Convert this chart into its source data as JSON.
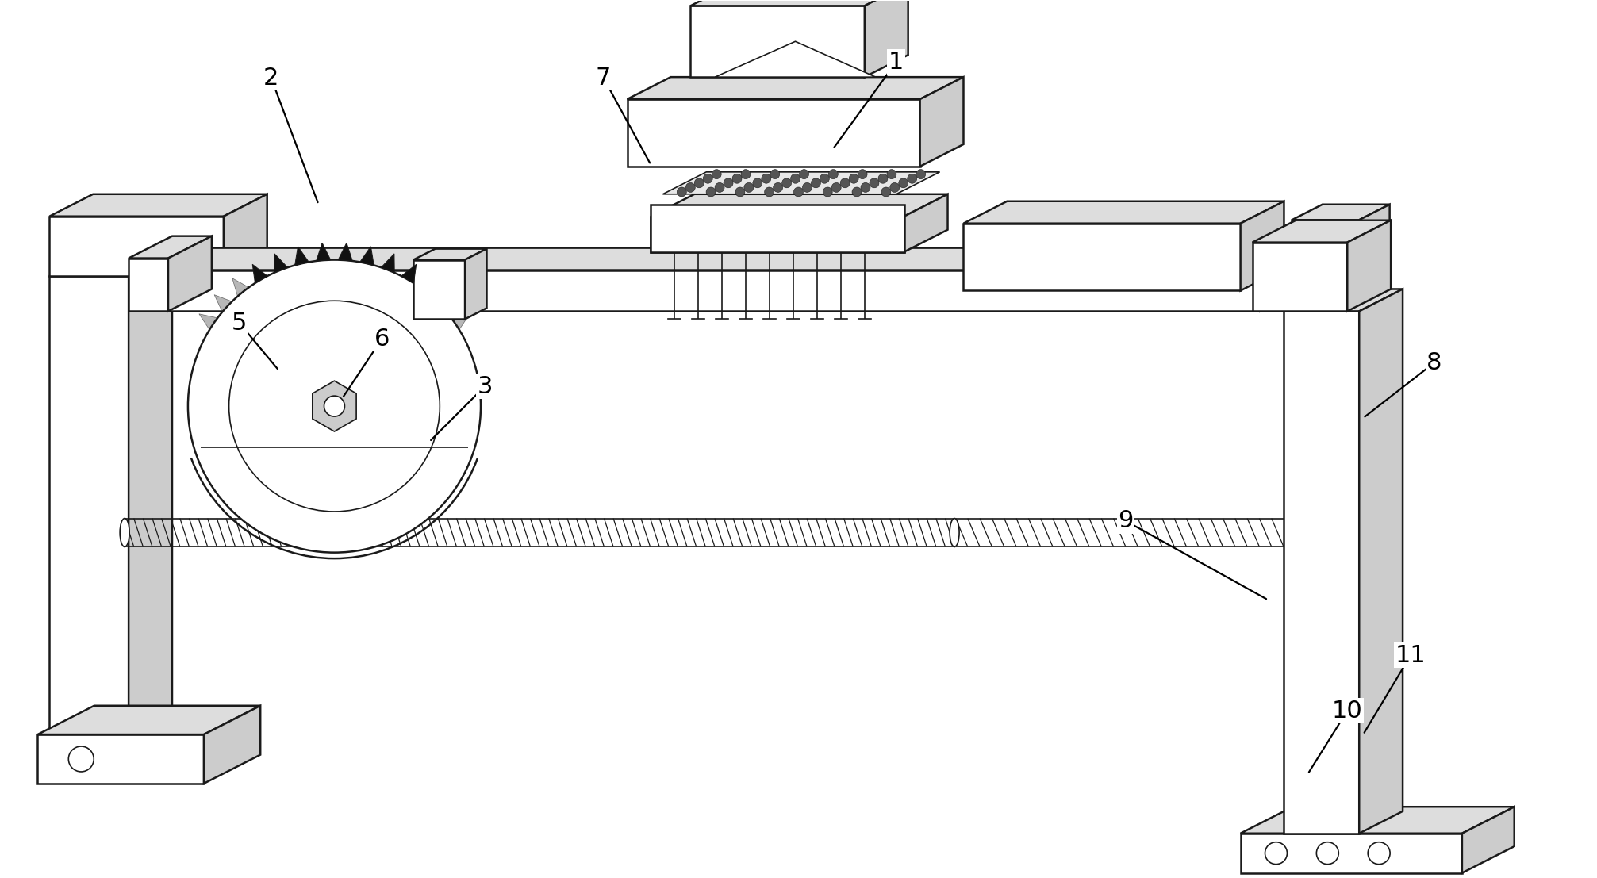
{
  "bg_color": "#ffffff",
  "line_color": "#1a1a1a",
  "label_fontsize": 22,
  "figsize": [
    20.13,
    11.07
  ],
  "dpi": 100
}
